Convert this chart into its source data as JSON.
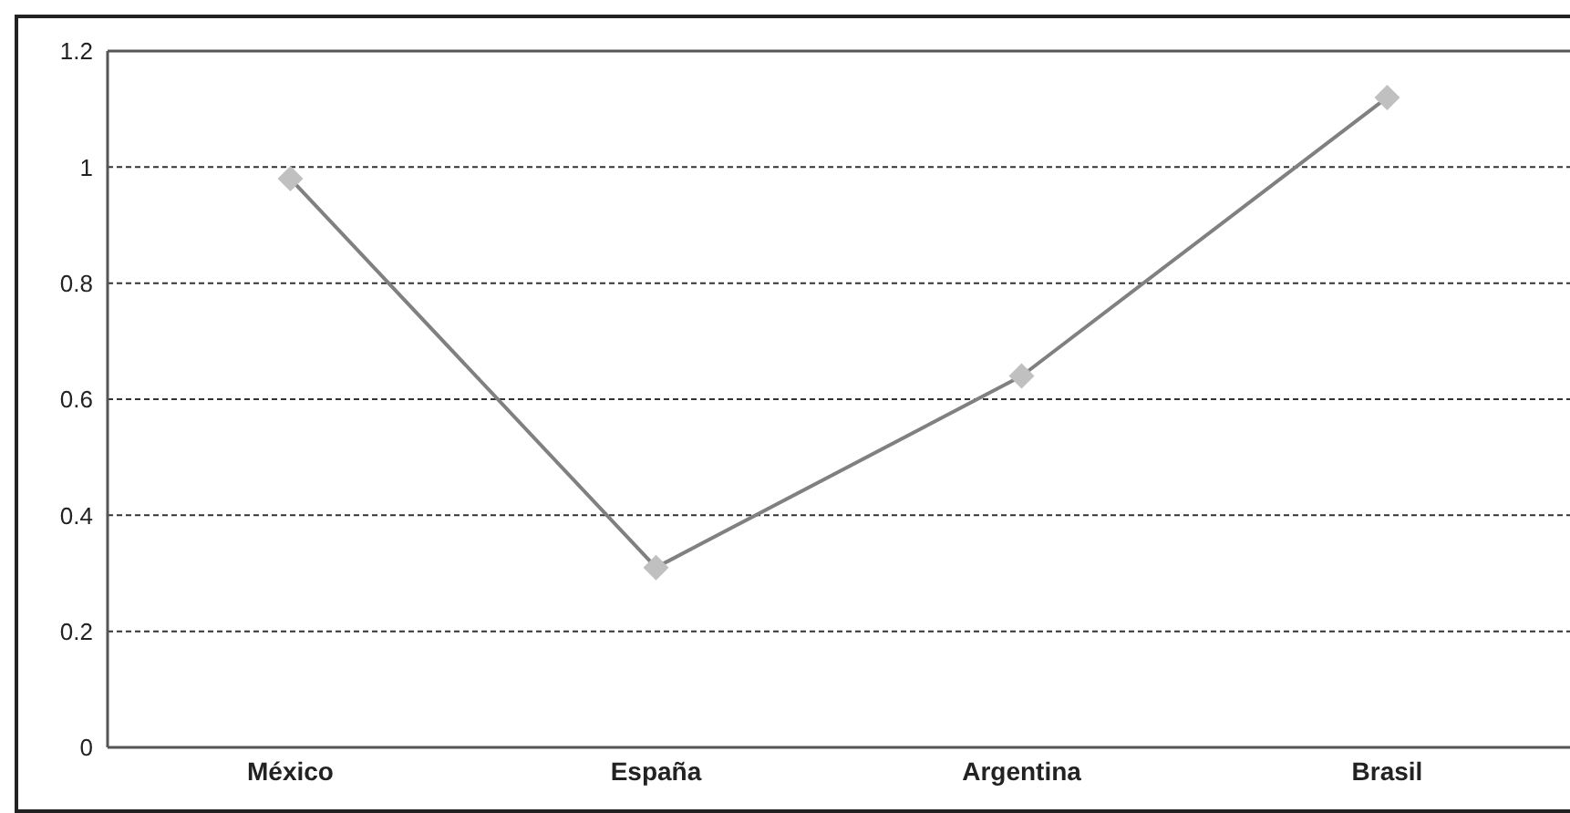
{
  "chart_data": {
    "type": "line",
    "categories": [
      "México",
      "España",
      "Argentina",
      "Brasil"
    ],
    "series": [
      {
        "color": "#808080",
        "values": [
          0.98,
          0.31,
          0.64,
          1.12
        ]
      }
    ],
    "marker": "diamond",
    "ylim": [
      0,
      1.2
    ],
    "yticks": [
      0,
      0.2,
      0.4,
      0.6,
      0.8,
      1,
      1.2
    ],
    "grid": "y"
  }
}
